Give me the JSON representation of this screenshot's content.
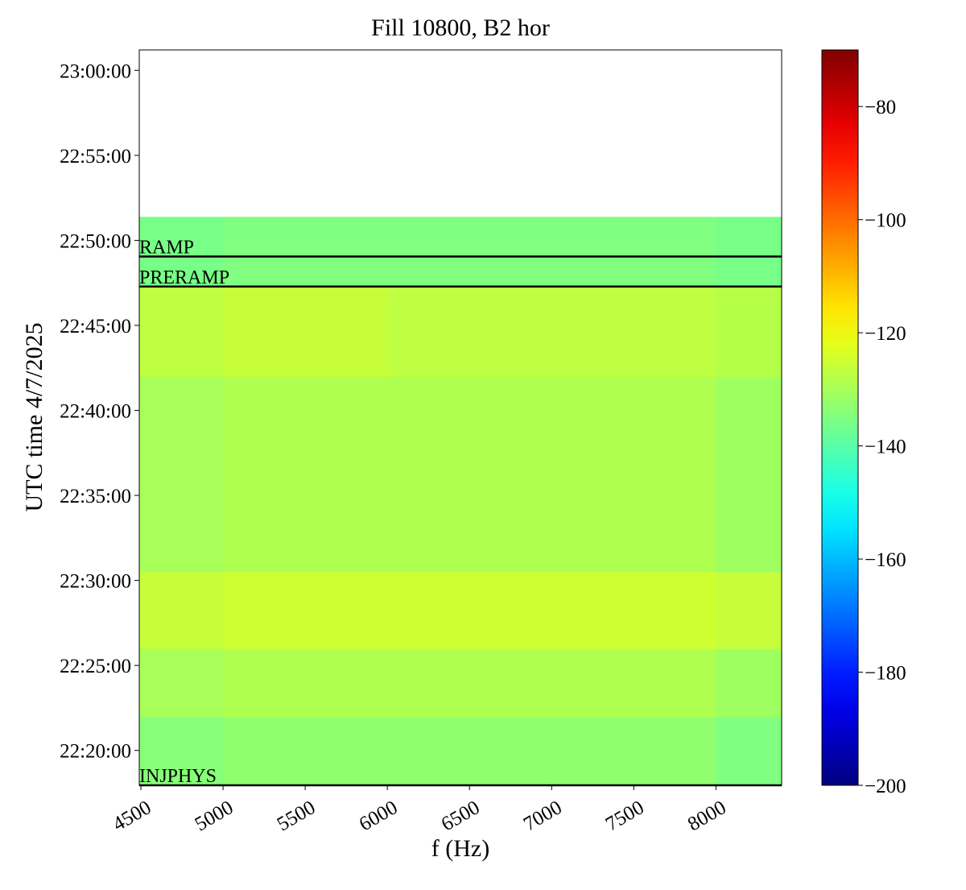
{
  "chart_data": {
    "type": "heatmap",
    "title": "Fill 10800, B2 hor",
    "xlabel": "f (Hz)",
    "ylabel": "UTC time 4/7/2025",
    "xlim": [
      4490,
      8400
    ],
    "xticks": [
      4500,
      5000,
      5500,
      6000,
      6500,
      7000,
      7500,
      8000
    ],
    "ylim": [
      "22:17:57",
      "23:01:12"
    ],
    "yticks": [
      "22:20:00",
      "22:25:00",
      "22:30:00",
      "22:35:00",
      "22:40:00",
      "22:45:00",
      "22:50:00",
      "22:55:00",
      "23:00:00"
    ],
    "x_edges": [
      4490,
      5000,
      6000,
      7000,
      8000,
      8400
    ],
    "y_edges": [
      "22:17:57",
      "22:22:00",
      "22:26:00",
      "22:30:30",
      "22:42:00",
      "22:47:17",
      "22:51:23"
    ],
    "z": [
      [
        -134,
        -133,
        -133,
        -133,
        -135
      ],
      [
        -130,
        -129,
        -129,
        -129,
        -131
      ],
      [
        -126,
        -125,
        -125,
        -125,
        -126
      ],
      [
        -130,
        -129,
        -129,
        -129,
        -131
      ],
      [
        -127,
        -126,
        -127,
        -127,
        -128
      ],
      [
        -136,
        -135,
        -135,
        -135,
        -136
      ]
    ],
    "colormap": "jet",
    "clim": [
      -200,
      -70
    ],
    "cticks": [
      -200,
      -180,
      -160,
      -140,
      -120,
      -100,
      -80
    ],
    "events": [
      {
        "label": "RAMP",
        "time": "22:49:03"
      },
      {
        "label": "PRERAMP",
        "time": "22:47:17"
      },
      {
        "label": "INJPHYS",
        "time": "22:17:57"
      }
    ]
  }
}
